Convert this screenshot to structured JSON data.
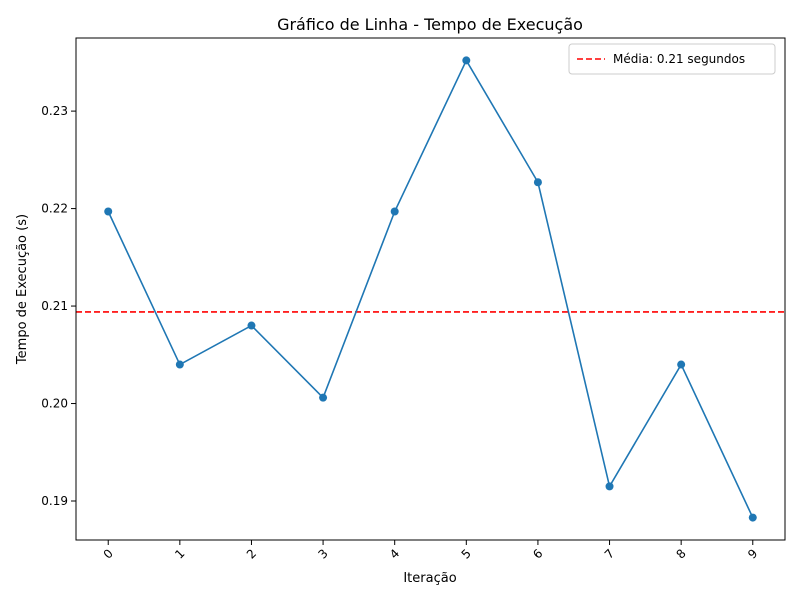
{
  "chart_data": {
    "type": "line",
    "title": "Gráfico de Linha - Tempo de Execução",
    "xlabel": "Iteração",
    "ylabel": "Tempo de Execução (s)",
    "x": [
      0,
      1,
      2,
      3,
      4,
      5,
      6,
      7,
      8,
      9
    ],
    "x_tick_labels": [
      "0",
      "1",
      "2",
      "3",
      "4",
      "5",
      "6",
      "7",
      "8",
      "9"
    ],
    "series": [
      {
        "values": [
          0.2197,
          0.204,
          0.208,
          0.2006,
          0.2197,
          0.2352,
          0.2227,
          0.1915,
          0.204,
          0.1883
        ],
        "color": "#1f77b4",
        "marker": "circle"
      }
    ],
    "reference_line": {
      "y": 0.2094,
      "label": "Média: 0.21 segundos",
      "color": "#ff0000",
      "style": "dashed"
    },
    "y_ticks": [
      0.19,
      0.2,
      0.21,
      0.22,
      0.23
    ],
    "y_tick_labels": [
      "0.19",
      "0.20",
      "0.21",
      "0.22",
      "0.23"
    ],
    "xlim": [
      -0.45,
      9.45
    ],
    "ylim": [
      0.186,
      0.2375
    ],
    "grid": false,
    "legend_position": "top-right"
  }
}
